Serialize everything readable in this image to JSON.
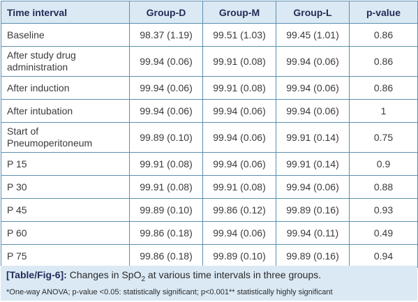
{
  "table": {
    "headers": [
      "Time interval",
      "Group-D",
      "Group-M",
      "Group-L",
      "p-value"
    ],
    "rows": [
      {
        "label": [
          "Baseline"
        ],
        "d": "98.37 (1.19)",
        "m": "99.51 (1.03)",
        "l": "99.45 (1.01)",
        "p": "0.86"
      },
      {
        "label": [
          "After study drug",
          "administration"
        ],
        "d": "99.94 (0.06)",
        "m": "99.91 (0.08)",
        "l": "99.94 (0.06)",
        "p": "0.86"
      },
      {
        "label": [
          "After induction"
        ],
        "d": "99.94 (0.06)",
        "m": "99.91 (0.08)",
        "l": "99.94 (0.06)",
        "p": "0.86"
      },
      {
        "label": [
          "After intubation"
        ],
        "d": "99.94 (0.06)",
        "m": "99.94 (0.06)",
        "l": "99.94 (0.06)",
        "p": "1"
      },
      {
        "label": [
          "Start of",
          "Pneumoperitoneum"
        ],
        "d": "99.89 (0.10)",
        "m": "99.94 (0.06)",
        "l": "99.91 (0.14)",
        "p": "0.75"
      },
      {
        "label": [
          "P 15"
        ],
        "d": "99.91 (0.08)",
        "m": "99.94 (0.06)",
        "l": "99.91 (0.14)",
        "p": "0.9"
      },
      {
        "label": [
          "P 30"
        ],
        "d": "99.91 (0.08)",
        "m": "99.91 (0.08)",
        "l": "99.94 (0.06)",
        "p": "0.88"
      },
      {
        "label": [
          "P 45"
        ],
        "d": "99.89 (0.10)",
        "m": "99.86 (0.12)",
        "l": "99.89 (0.16)",
        "p": "0.93"
      },
      {
        "label": [
          "P 60"
        ],
        "d": "99.86 (0.18)",
        "m": "99.94 (0.06)",
        "l": "99.94 (0.11)",
        "p": "0.49"
      },
      {
        "label": [
          "P 75"
        ],
        "d": "99.86 (0.18)",
        "m": "99.89 (0.10)",
        "l": "99.89 (0.16)",
        "p": "0.94"
      }
    ]
  },
  "caption": {
    "tag": "[Table/Fig-6]:",
    "text_before": " Changes in SpO",
    "subscript": "2",
    "text_after": " at various time intervals in three groups.",
    "footnote": "*One-way ANOVA; p-value <0.05: statistically significant; p<0.001** statistically highly significant"
  },
  "colors": {
    "header_bg": "#dbe9f4",
    "border": "#5a8fb0",
    "header_text": "#222c58"
  }
}
